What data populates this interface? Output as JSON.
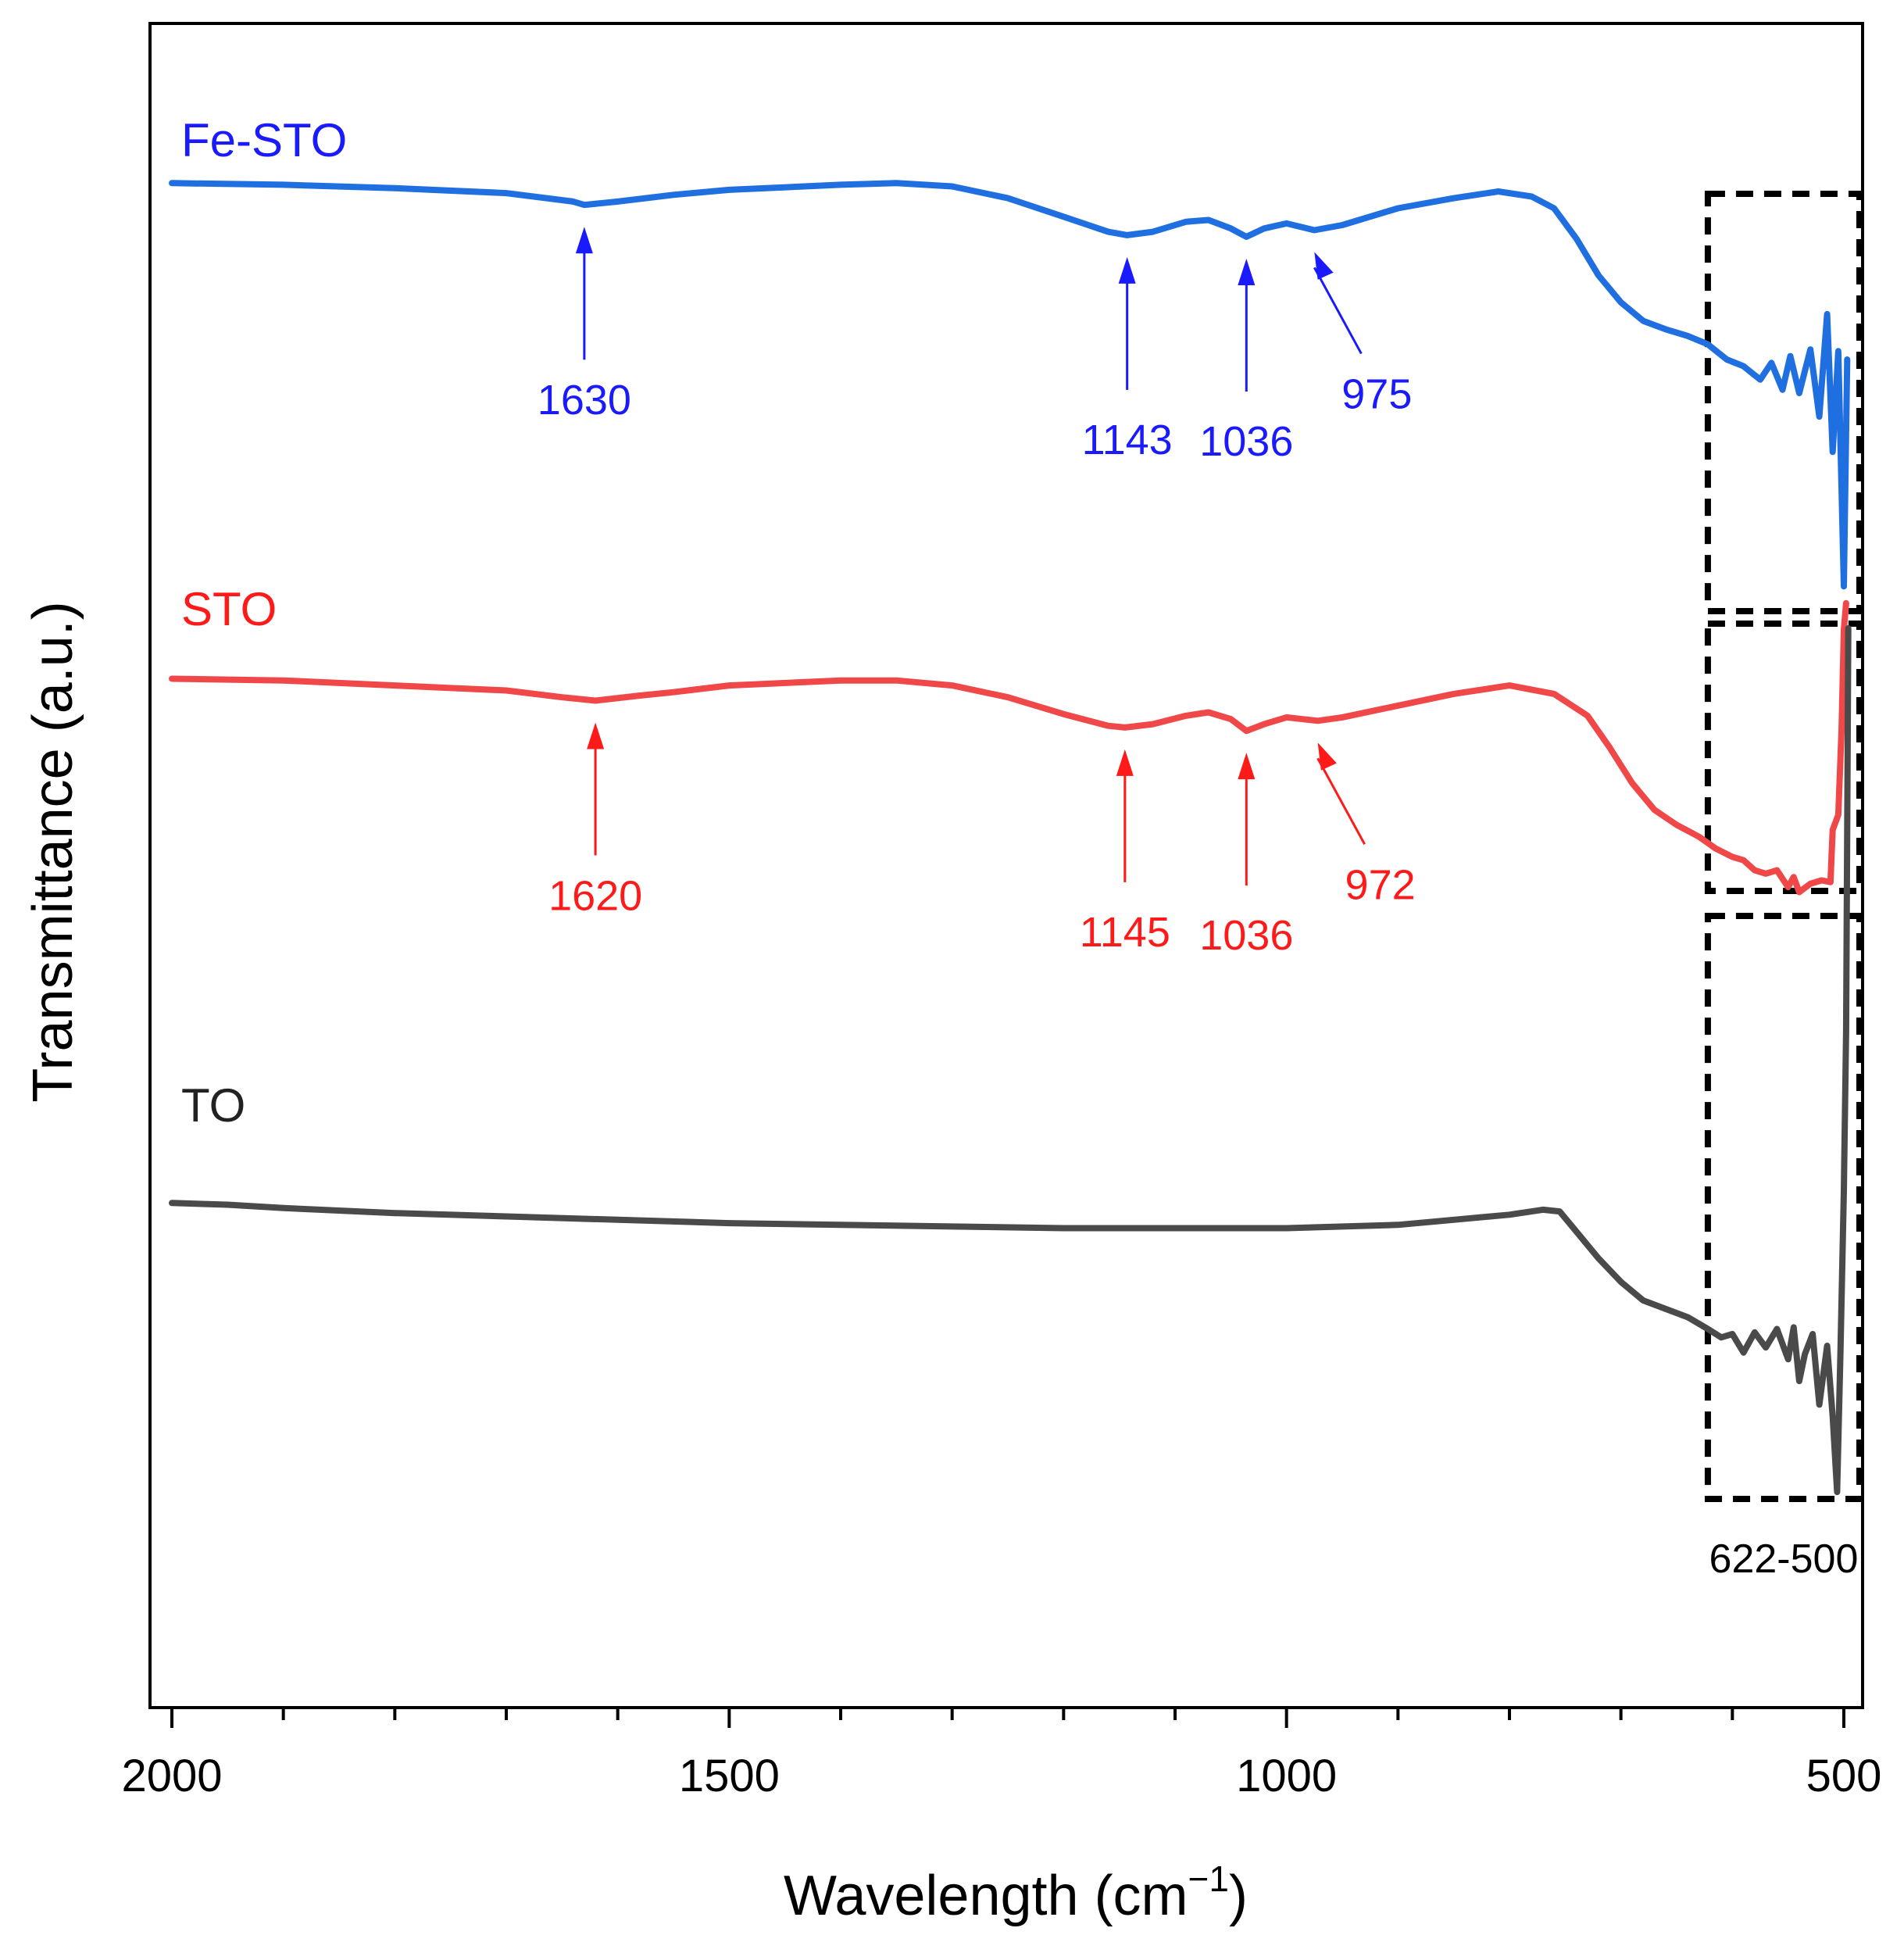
{
  "chart_data": {
    "type": "line",
    "title": "",
    "xlabel": "Wavelength (cm",
    "xlabel_sup": "−1",
    "xlabel_close": ")",
    "ylabel": "Transmittance (a.u.)",
    "xlim": [
      2000,
      500
    ],
    "ylim": [
      0,
      100
    ],
    "x_ticks": [
      2000,
      1500,
      1000,
      500
    ],
    "x_tick_labels": [
      "2000",
      "1500",
      "1000",
      "500"
    ],
    "x_minor_step": 100,
    "series": [
      {
        "name": "Fe-STO",
        "color": "#1f6fe0",
        "label_color": "#1a1aff",
        "points": [
          [
            2000,
            90.5
          ],
          [
            1900,
            90.4
          ],
          [
            1800,
            90.2
          ],
          [
            1700,
            89.9
          ],
          [
            1640,
            89.4
          ],
          [
            1630,
            89.2
          ],
          [
            1600,
            89.4
          ],
          [
            1550,
            89.8
          ],
          [
            1500,
            90.1
          ],
          [
            1400,
            90.4
          ],
          [
            1350,
            90.5
          ],
          [
            1300,
            90.3
          ],
          [
            1250,
            89.6
          ],
          [
            1200,
            88.5
          ],
          [
            1160,
            87.6
          ],
          [
            1143,
            87.4
          ],
          [
            1120,
            87.6
          ],
          [
            1090,
            88.2
          ],
          [
            1070,
            88.3
          ],
          [
            1050,
            87.8
          ],
          [
            1036,
            87.3
          ],
          [
            1020,
            87.8
          ],
          [
            1000,
            88.1
          ],
          [
            975,
            87.7
          ],
          [
            950,
            88.0
          ],
          [
            900,
            89.0
          ],
          [
            850,
            89.6
          ],
          [
            810,
            90.0
          ],
          [
            780,
            89.7
          ],
          [
            760,
            89.0
          ],
          [
            740,
            87.2
          ],
          [
            720,
            85.0
          ],
          [
            700,
            83.4
          ],
          [
            680,
            82.3
          ],
          [
            660,
            81.8
          ],
          [
            640,
            81.4
          ],
          [
            622,
            80.9
          ],
          [
            605,
            80.0
          ],
          [
            590,
            79.6
          ],
          [
            575,
            78.8
          ],
          [
            565,
            79.8
          ],
          [
            555,
            78.2
          ],
          [
            548,
            80.2
          ],
          [
            540,
            78.0
          ],
          [
            530,
            80.6
          ],
          [
            522,
            76.6
          ],
          [
            515,
            82.7
          ],
          [
            510,
            74.5
          ],
          [
            505,
            80.5
          ],
          [
            500,
            66.5
          ],
          [
            497,
            80.0
          ]
        ],
        "peaks": [
          {
            "x": 1630,
            "label": "1630"
          },
          {
            "x": 1143,
            "label": "1143"
          },
          {
            "x": 1036,
            "label": "1036"
          },
          {
            "x": 975,
            "label": "975"
          }
        ]
      },
      {
        "name": "STO",
        "color": "#f04848",
        "label_color": "#ff1a1a",
        "points": [
          [
            2000,
            61.0
          ],
          [
            1900,
            60.9
          ],
          [
            1800,
            60.6
          ],
          [
            1700,
            60.3
          ],
          [
            1650,
            59.9
          ],
          [
            1620,
            59.7
          ],
          [
            1580,
            60.0
          ],
          [
            1550,
            60.2
          ],
          [
            1500,
            60.6
          ],
          [
            1400,
            60.9
          ],
          [
            1350,
            60.9
          ],
          [
            1300,
            60.6
          ],
          [
            1250,
            59.9
          ],
          [
            1200,
            58.9
          ],
          [
            1160,
            58.2
          ],
          [
            1145,
            58.1
          ],
          [
            1120,
            58.3
          ],
          [
            1090,
            58.8
          ],
          [
            1070,
            59.0
          ],
          [
            1050,
            58.6
          ],
          [
            1036,
            57.9
          ],
          [
            1020,
            58.3
          ],
          [
            1000,
            58.7
          ],
          [
            972,
            58.5
          ],
          [
            950,
            58.7
          ],
          [
            900,
            59.4
          ],
          [
            850,
            60.1
          ],
          [
            800,
            60.6
          ],
          [
            760,
            60.1
          ],
          [
            730,
            58.8
          ],
          [
            710,
            56.9
          ],
          [
            690,
            54.8
          ],
          [
            670,
            53.2
          ],
          [
            650,
            52.3
          ],
          [
            630,
            51.6
          ],
          [
            615,
            50.9
          ],
          [
            600,
            50.4
          ],
          [
            590,
            50.2
          ],
          [
            580,
            49.6
          ],
          [
            570,
            49.4
          ],
          [
            560,
            49.6
          ],
          [
            550,
            48.6
          ],
          [
            545,
            49.2
          ],
          [
            540,
            48.3
          ],
          [
            530,
            48.8
          ],
          [
            520,
            49.0
          ],
          [
            512,
            48.9
          ],
          [
            510,
            52.0
          ],
          [
            505,
            52.9
          ],
          [
            502,
            58.0
          ],
          [
            500,
            63.9
          ],
          [
            498,
            65.5
          ]
        ],
        "peaks": [
          {
            "x": 1620,
            "label": "1620"
          },
          {
            "x": 1145,
            "label": "1145"
          },
          {
            "x": 1036,
            "label": "1036"
          },
          {
            "x": 972,
            "label": "972"
          }
        ]
      },
      {
        "name": "TO",
        "color": "#4a4a4a",
        "label_color": "#222222",
        "points": [
          [
            2000,
            29.8
          ],
          [
            1950,
            29.7
          ],
          [
            1900,
            29.5
          ],
          [
            1800,
            29.2
          ],
          [
            1700,
            29.0
          ],
          [
            1600,
            28.8
          ],
          [
            1500,
            28.6
          ],
          [
            1400,
            28.5
          ],
          [
            1300,
            28.4
          ],
          [
            1200,
            28.3
          ],
          [
            1100,
            28.3
          ],
          [
            1000,
            28.3
          ],
          [
            900,
            28.5
          ],
          [
            850,
            28.8
          ],
          [
            800,
            29.1
          ],
          [
            770,
            29.4
          ],
          [
            755,
            29.3
          ],
          [
            740,
            28.1
          ],
          [
            720,
            26.5
          ],
          [
            700,
            25.1
          ],
          [
            680,
            24.0
          ],
          [
            660,
            23.5
          ],
          [
            640,
            23.0
          ],
          [
            622,
            22.3
          ],
          [
            610,
            21.8
          ],
          [
            600,
            22.0
          ],
          [
            590,
            20.9
          ],
          [
            580,
            22.1
          ],
          [
            570,
            21.2
          ],
          [
            560,
            22.3
          ],
          [
            550,
            20.5
          ],
          [
            545,
            22.4
          ],
          [
            540,
            19.2
          ],
          [
            535,
            20.8
          ],
          [
            528,
            22.0
          ],
          [
            522,
            17.8
          ],
          [
            515,
            21.3
          ],
          [
            510,
            17.1
          ],
          [
            506,
            12.6
          ],
          [
            503,
            21.0
          ],
          [
            500,
            30.5
          ],
          [
            498,
            40.0
          ],
          [
            496,
            64.0
          ]
        ]
      }
    ],
    "annotations": [
      {
        "type": "dashed-box",
        "label": "622-500",
        "x_range": [
          622,
          500
        ]
      }
    ]
  }
}
